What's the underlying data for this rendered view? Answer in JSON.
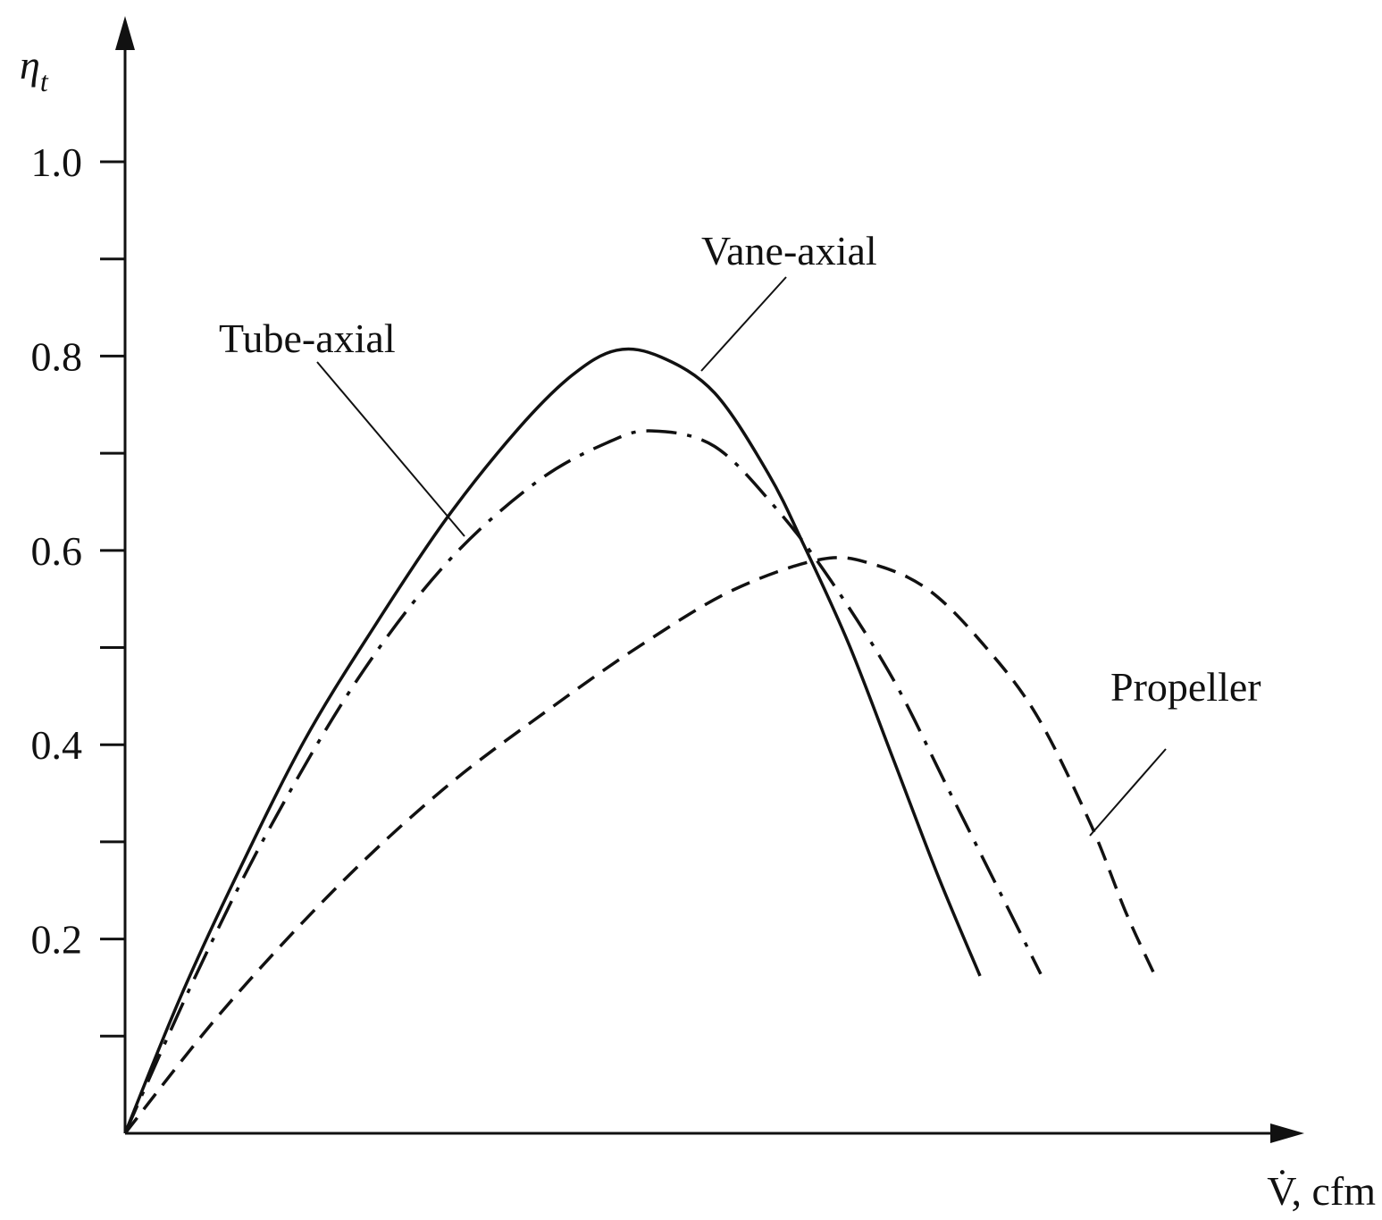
{
  "chart_data": {
    "type": "line",
    "y_label": "η",
    "y_label_subscript": "t",
    "x_label": "V̇, cfm",
    "xlim": [
      0,
      10
    ],
    "ylim": [
      0,
      1.15
    ],
    "yticks": [
      0.2,
      0.4,
      0.6,
      0.8,
      {
        "value": 1,
        "label": "1.0"
      }
    ],
    "minor_yticks": [
      0.1,
      0.3,
      0.5,
      0.7,
      0.9
    ],
    "series": [
      {
        "name": "Vane-axial",
        "color": "#111111",
        "dash": "solid",
        "x": [
          0,
          0.455,
          0.909,
          1.515,
          2.121,
          2.727,
          3.333,
          3.788,
          4.167,
          4.545,
          5.0,
          5.455,
          5.758,
          6.136,
          6.515,
          6.894,
          7.25
        ],
        "values": [
          0,
          0.136,
          0.256,
          0.403,
          0.523,
          0.633,
          0.725,
          0.78,
          0.806,
          0.799,
          0.762,
          0.679,
          0.605,
          0.504,
          0.385,
          0.265,
          0.162
        ]
      },
      {
        "name": "Tube-axial",
        "color": "#111111",
        "dash": "dash-dot",
        "x": [
          0,
          0.606,
          1.212,
          1.97,
          2.727,
          3.485,
          4.091,
          4.47,
          5.0,
          5.53,
          5.985,
          6.515,
          6.97,
          7.424,
          7.765
        ],
        "values": [
          0,
          0.164,
          0.311,
          0.467,
          0.587,
          0.67,
          0.711,
          0.723,
          0.707,
          0.642,
          0.569,
          0.467,
          0.357,
          0.247,
          0.164
        ]
      },
      {
        "name": "Propeller",
        "color": "#111111",
        "dash": "dashed",
        "x": [
          0,
          0.833,
          1.818,
          2.727,
          3.636,
          4.394,
          5.152,
          5.909,
          6.364,
          6.818,
          7.273,
          7.727,
          8.182,
          8.485,
          8.727
        ],
        "values": [
          0,
          0.127,
          0.256,
          0.357,
          0.44,
          0.504,
          0.559,
          0.591,
          0.585,
          0.559,
          0.504,
          0.431,
          0.32,
          0.228,
          0.164
        ]
      }
    ]
  }
}
